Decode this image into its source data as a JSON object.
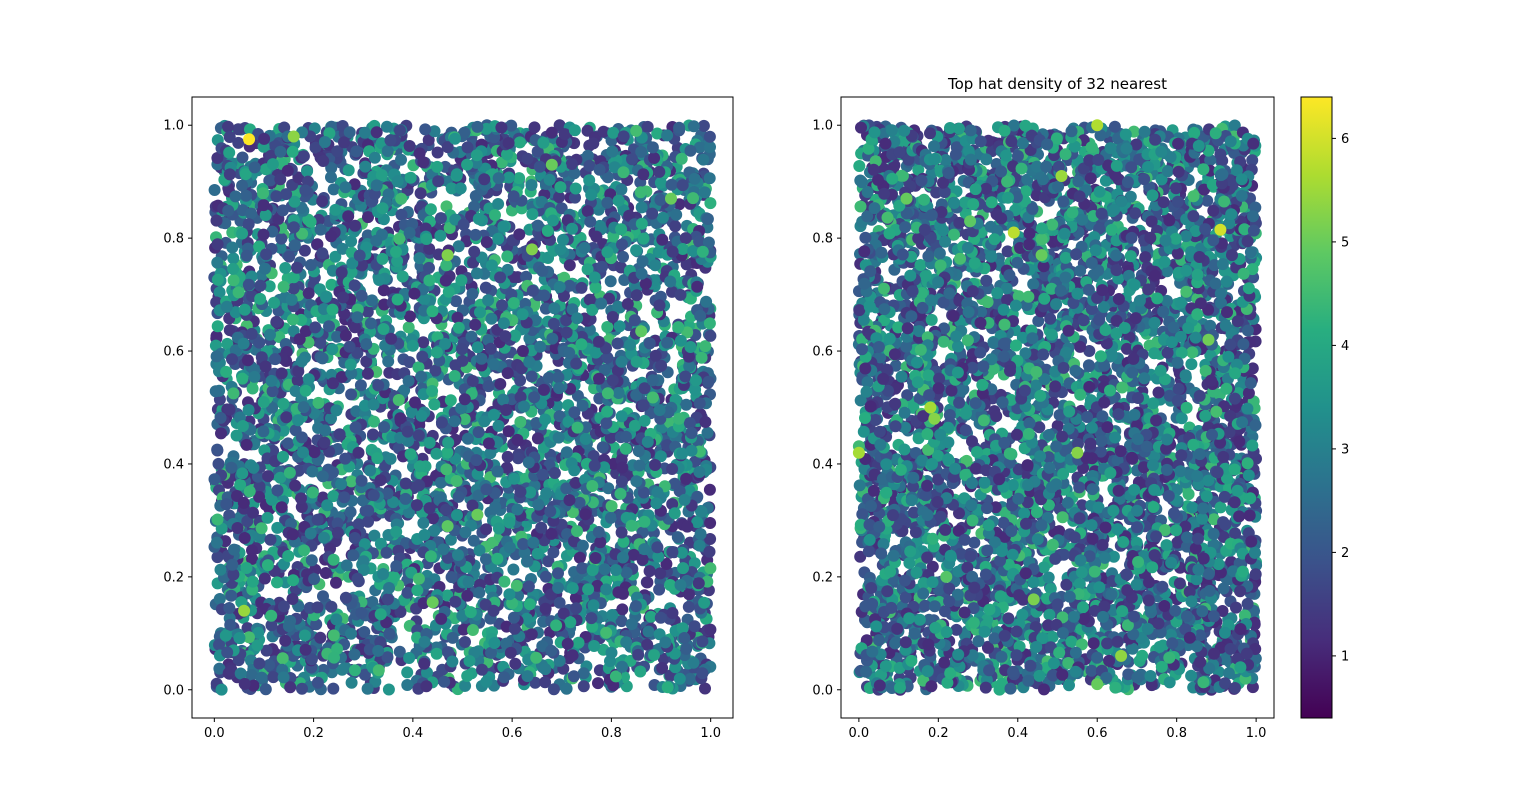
{
  "chart_data": [
    {
      "type": "scatter",
      "title": "",
      "xlabel": "",
      "ylabel": "",
      "xlim": [
        -0.045,
        1.045
      ],
      "ylim": [
        -0.05,
        1.05
      ],
      "xticks": [
        0.0,
        0.2,
        0.4,
        0.6,
        0.8,
        1.0
      ],
      "yticks": [
        0.0,
        0.2,
        0.4,
        0.6,
        0.8,
        1.0
      ],
      "xtick_labels": [
        "0.0",
        "0.2",
        "0.4",
        "0.6",
        "0.8",
        "1.0"
      ],
      "ytick_labels": [
        "0.0",
        "0.2",
        "0.4",
        "0.6",
        "0.8",
        "1.0"
      ],
      "n_points": 5000,
      "x_range": [
        0.0,
        1.0
      ],
      "y_range": [
        0.0,
        1.0
      ],
      "color_range": [
        1.0,
        6.2
      ],
      "colormap": "viridis",
      "grid": false,
      "highlights": [
        {
          "x": 0.07,
          "y": 0.975,
          "c": 6.2
        },
        {
          "x": 0.16,
          "y": 0.98,
          "c": 5.3
        },
        {
          "x": 0.68,
          "y": 0.93,
          "c": 5.0
        },
        {
          "x": 0.92,
          "y": 0.87,
          "c": 5.0
        },
        {
          "x": 0.47,
          "y": 0.77,
          "c": 5.2
        },
        {
          "x": 0.64,
          "y": 0.78,
          "c": 5.2
        },
        {
          "x": 0.86,
          "y": 0.635,
          "c": 4.9
        },
        {
          "x": 0.53,
          "y": 0.31,
          "c": 5.0
        },
        {
          "x": 0.06,
          "y": 0.14,
          "c": 5.4
        },
        {
          "x": 0.44,
          "y": 0.155,
          "c": 5.0
        },
        {
          "x": 0.47,
          "y": 0.29,
          "c": 4.9
        },
        {
          "x": 0.85,
          "y": 0.99,
          "c": 4.6
        }
      ]
    },
    {
      "type": "scatter",
      "title": "Top hat density of 32 nearest",
      "xlabel": "",
      "ylabel": "",
      "xlim": [
        -0.045,
        1.045
      ],
      "ylim": [
        -0.05,
        1.05
      ],
      "xticks": [
        0.0,
        0.2,
        0.4,
        0.6,
        0.8,
        1.0
      ],
      "yticks": [
        0.0,
        0.2,
        0.4,
        0.6,
        0.8,
        1.0
      ],
      "xtick_labels": [
        "0.0",
        "0.2",
        "0.4",
        "0.6",
        "0.8",
        "1.0"
      ],
      "ytick_labels": [
        "0.0",
        "0.2",
        "0.4",
        "0.6",
        "0.8",
        "1.0"
      ],
      "n_points": 5000,
      "x_range": [
        0.0,
        1.0
      ],
      "y_range": [
        0.0,
        1.0
      ],
      "color_range": [
        0.4,
        6.4
      ],
      "colormap": "viridis",
      "grid": false,
      "highlights": [
        {
          "x": 0.91,
          "y": 0.815,
          "c": 6.0
        },
        {
          "x": 0.39,
          "y": 0.81,
          "c": 5.8
        },
        {
          "x": 0.6,
          "y": 1.0,
          "c": 5.7
        },
        {
          "x": 0.51,
          "y": 0.91,
          "c": 5.5
        },
        {
          "x": 0.18,
          "y": 0.5,
          "c": 5.6
        },
        {
          "x": 0.19,
          "y": 0.48,
          "c": 5.3
        },
        {
          "x": 0.0,
          "y": 0.42,
          "c": 5.6
        },
        {
          "x": 0.55,
          "y": 0.42,
          "c": 5.3
        },
        {
          "x": 0.12,
          "y": 0.87,
          "c": 5.0
        },
        {
          "x": 0.28,
          "y": 0.83,
          "c": 4.9
        },
        {
          "x": 0.44,
          "y": 0.16,
          "c": 5.2
        },
        {
          "x": 0.66,
          "y": 0.06,
          "c": 5.4
        },
        {
          "x": 0.6,
          "y": 0.01,
          "c": 5.0
        },
        {
          "x": 0.22,
          "y": 0.2,
          "c": 4.8
        },
        {
          "x": 0.88,
          "y": 0.62,
          "c": 5.1
        },
        {
          "x": 0.46,
          "y": 0.77,
          "c": 5.0
        }
      ],
      "colorbar": {
        "ticks": [
          1,
          2,
          3,
          4,
          5,
          6
        ],
        "tick_labels": [
          "1",
          "2",
          "3",
          "4",
          "5",
          "6"
        ],
        "range": [
          0.4,
          6.4
        ]
      }
    }
  ]
}
